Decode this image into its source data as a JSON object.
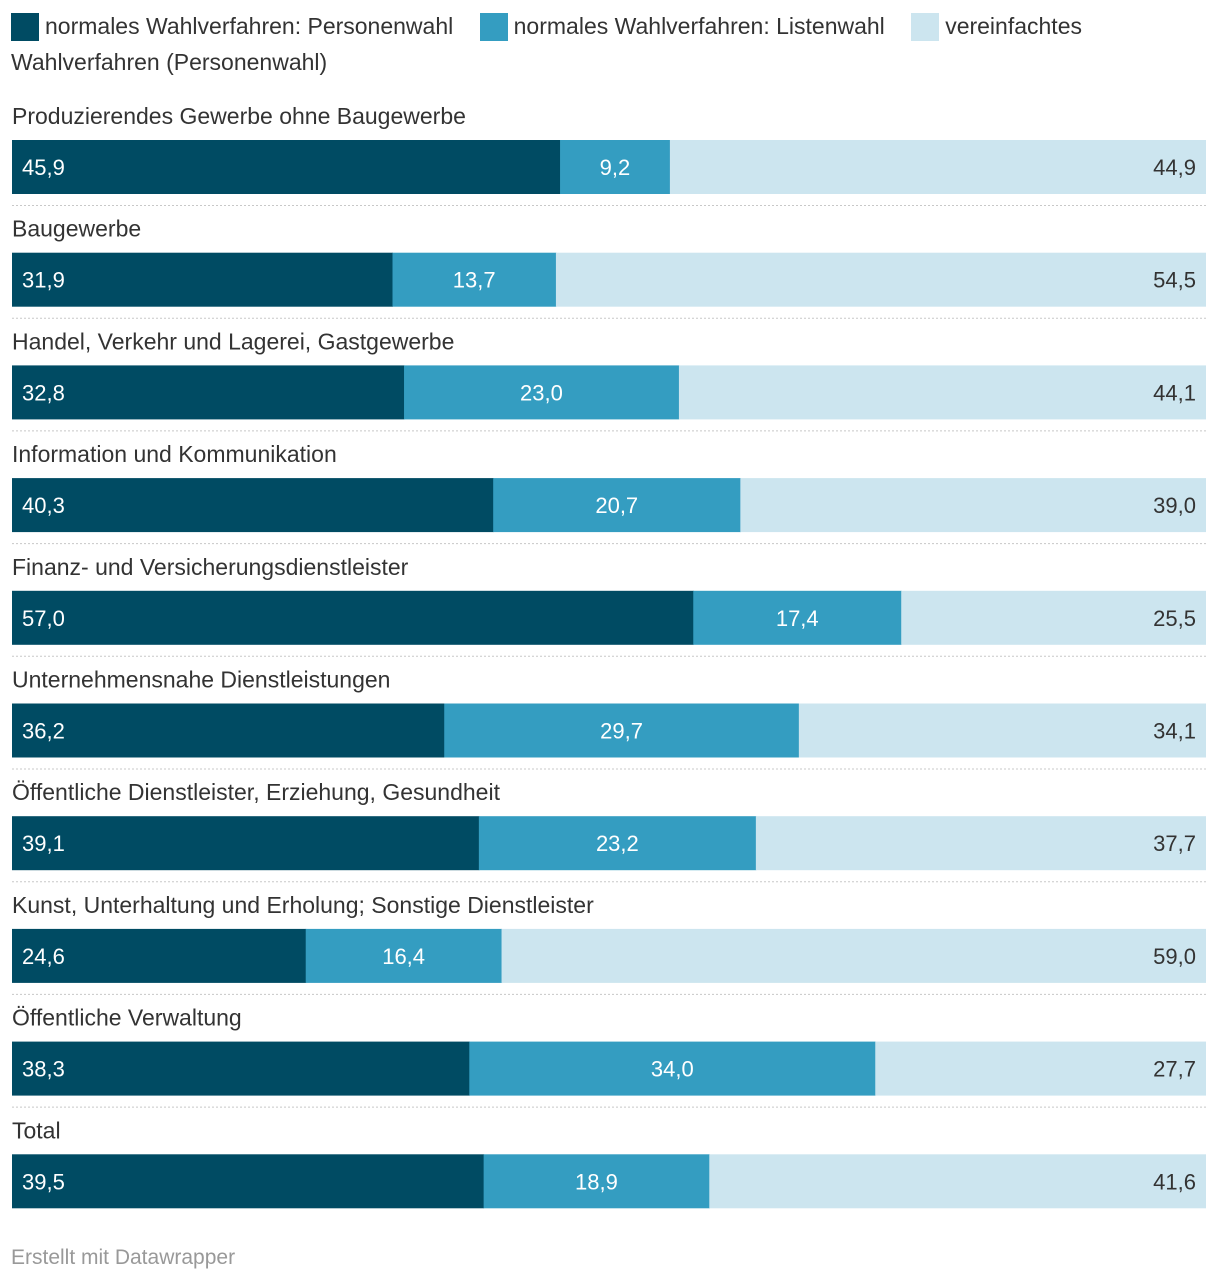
{
  "chart_data": {
    "type": "bar",
    "orientation": "horizontal",
    "stacked": true,
    "legend_placement": "top",
    "categories": [
      "Produzierendes Gewerbe ohne Baugewerbe",
      "Baugewerbe",
      "Handel, Verkehr und Lagerei, Gastgewerbe",
      "Information und Kommunikation",
      "Finanz- und Versicherungsdienstleister",
      "Unternehmensnahe Dienstleistungen",
      "Öffentliche Dienstleister, Erziehung, Gesundheit",
      "Kunst, Unterhaltung und Erholung; Sonstige Dienstleister",
      "Öffentliche Verwaltung",
      "Total"
    ],
    "series": [
      {
        "name": "normales Wahlverfahren: Personenwahl",
        "color": "#004b63",
        "label_color": "#ffffff",
        "values": [
          45.9,
          31.9,
          32.8,
          40.3,
          57.0,
          36.2,
          39.1,
          24.6,
          38.3,
          39.5
        ],
        "labels": [
          "45,9",
          "31,9",
          "32,8",
          "40,3",
          "57,0",
          "36,2",
          "39,1",
          "24,6",
          "38,3",
          "39,5"
        ]
      },
      {
        "name": "normales Wahlverfahren: Listenwahl",
        "color": "#349dc1",
        "label_color": "#ffffff",
        "values": [
          9.2,
          13.7,
          23.0,
          20.7,
          17.4,
          29.7,
          23.2,
          16.4,
          34.0,
          18.9
        ],
        "labels": [
          "9,2",
          "13,7",
          "23,0",
          "20,7",
          "17,4",
          "29,7",
          "23,2",
          "16,4",
          "34,0",
          "18,9"
        ]
      },
      {
        "name": "vereinfachtes Wahlverfahren (Personenwahl)",
        "color": "#cce5ef",
        "label_color": "#333333",
        "values": [
          44.9,
          54.5,
          44.1,
          39.0,
          25.5,
          34.1,
          37.7,
          59.0,
          27.7,
          41.6
        ],
        "labels": [
          "44,9",
          "54,5",
          "44,1",
          "39,0",
          "25,5",
          "34,1",
          "37,7",
          "59,0",
          "27,7",
          "41,6"
        ]
      }
    ]
  },
  "footer": {
    "credit": "Erstellt mit Datawrapper"
  }
}
